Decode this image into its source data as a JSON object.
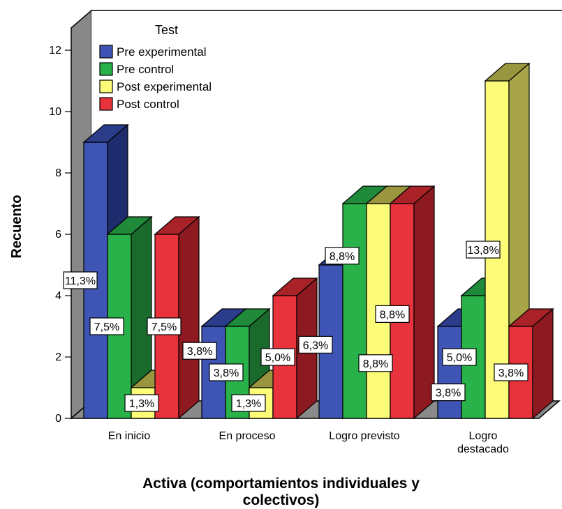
{
  "chart_data": {
    "type": "bar",
    "style": "3d-clustered",
    "ylabel": "Recuento",
    "xlabel_lines": [
      "Activa (comportamientos individuales y",
      "colectivos)"
    ],
    "ylim": [
      0,
      12
    ],
    "yticks": [
      0,
      2,
      4,
      6,
      8,
      10,
      12
    ],
    "legend_title": "Test",
    "legend_placement": "top-left",
    "categories": [
      {
        "lines": [
          "En inicio"
        ]
      },
      {
        "lines": [
          "En proceso"
        ]
      },
      {
        "lines": [
          "Logro previsto"
        ]
      },
      {
        "lines": [
          "Logro",
          "destacado"
        ]
      }
    ],
    "series": [
      {
        "name": "Pre experimental",
        "color": "#3e55b5",
        "side": "#1e2c6e",
        "top": "#2a3c8a",
        "values": [
          9,
          3,
          5,
          3
        ],
        "labels": [
          "11,3%",
          "3,8%",
          "6,3%",
          "3,8%"
        ]
      },
      {
        "name": "Pre control",
        "color": "#2ab24a",
        "side": "#1a6a2c",
        "top": "#1f8a3a",
        "values": [
          6,
          3,
          7,
          4
        ],
        "labels": [
          "7,5%",
          "3,8%",
          "8,8%",
          "5,0%"
        ]
      },
      {
        "name": "Post experimental",
        "color": "#fcfc78",
        "side": "#a8a44a",
        "top": "#9a9640",
        "values": [
          1,
          1,
          7,
          11
        ],
        "labels": [
          "1,3%",
          "1,3%",
          "8,8%",
          "13,8%"
        ]
      },
      {
        "name": "Post control",
        "color": "#e8323c",
        "side": "#8c1a20",
        "top": "#a82228",
        "values": [
          6,
          4,
          7,
          3
        ],
        "labels": [
          "7,5%",
          "5,0%",
          "8,8%",
          "3,8%"
        ]
      }
    ]
  }
}
